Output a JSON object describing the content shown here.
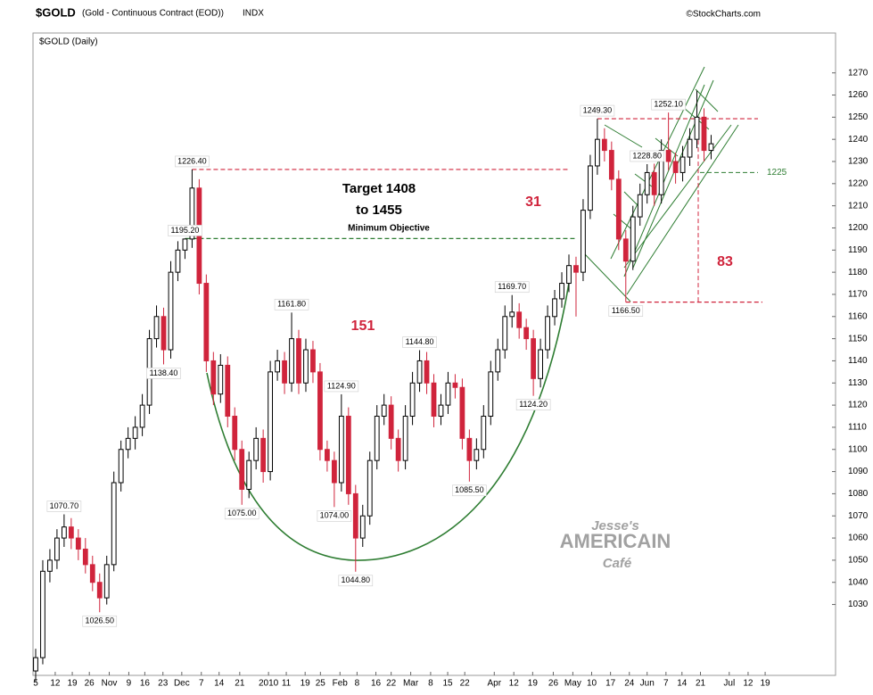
{
  "chart_data": {
    "type": "candlestick",
    "symbol": "$GOLD",
    "title": "(Gold - Continuous Contract (EOD))",
    "exchange": "INDX",
    "source": "©StockCharts.com",
    "panel_label": "$GOLD (Daily)",
    "xlim": [
      -0.5,
      225
    ],
    "xticks": [
      {
        "value": 0,
        "label": "5"
      },
      {
        "value": 5.5,
        "label": "12"
      },
      {
        "value": 10.3,
        "label": "19"
      },
      {
        "value": 15.1,
        "label": "26"
      },
      {
        "value": 20.7,
        "label": "Nov"
      },
      {
        "value": 26.2,
        "label": "9"
      },
      {
        "value": 30.7,
        "label": "16"
      },
      {
        "value": 35.8,
        "label": "23"
      },
      {
        "value": 41.1,
        "label": "Dec"
      },
      {
        "value": 46.6,
        "label": "7"
      },
      {
        "value": 51.6,
        "label": "14"
      },
      {
        "value": 57.4,
        "label": "21"
      },
      {
        "value": 65.5,
        "label": "2010"
      },
      {
        "value": 70.5,
        "label": "11"
      },
      {
        "value": 75.8,
        "label": "19"
      },
      {
        "value": 80.1,
        "label": "25"
      },
      {
        "value": 85.6,
        "label": "Feb"
      },
      {
        "value": 90.4,
        "label": "8"
      },
      {
        "value": 95.7,
        "label": "16"
      },
      {
        "value": 100,
        "label": "22"
      },
      {
        "value": 105.5,
        "label": "Mar"
      },
      {
        "value": 111.1,
        "label": "8"
      },
      {
        "value": 115.9,
        "label": "15"
      },
      {
        "value": 120.7,
        "label": "22"
      },
      {
        "value": 129,
        "label": "Apr"
      },
      {
        "value": 134.5,
        "label": "12"
      },
      {
        "value": 139.8,
        "label": "19"
      },
      {
        "value": 145.6,
        "label": "26"
      },
      {
        "value": 151.1,
        "label": "May"
      },
      {
        "value": 156.4,
        "label": "10"
      },
      {
        "value": 161.7,
        "label": "17"
      },
      {
        "value": 167,
        "label": "24"
      },
      {
        "value": 172,
        "label": "Jun"
      },
      {
        "value": 177.3,
        "label": "7"
      },
      {
        "value": 181.8,
        "label": "14"
      },
      {
        "value": 187,
        "label": "21"
      },
      {
        "value": 195.1,
        "label": "Jul"
      },
      {
        "value": 200.4,
        "label": "12"
      },
      {
        "value": 205.2,
        "label": "19"
      }
    ],
    "ylim": [
      998,
      1288
    ],
    "yticks": [
      1030,
      1040,
      1050,
      1060,
      1070,
      1080,
      1090,
      1100,
      1110,
      1120,
      1130,
      1140,
      1150,
      1160,
      1170,
      1180,
      1190,
      1200,
      1210,
      1220,
      1230,
      1240,
      1250,
      1260,
      1270
    ],
    "up_color": "#000000",
    "down_color": "#d0243c",
    "x": [
      0,
      2,
      4,
      6,
      8,
      10,
      12,
      14,
      16,
      18,
      20,
      22,
      24,
      26,
      28,
      30,
      32,
      34,
      36,
      38,
      40,
      42,
      44,
      46,
      48,
      50,
      52,
      54,
      56,
      58,
      60,
      62,
      64,
      66,
      68,
      70,
      72,
      74,
      76,
      78,
      80,
      82,
      84,
      86,
      88,
      90,
      92,
      94,
      96,
      98,
      100,
      102,
      104,
      106,
      108,
      110,
      112,
      114,
      116,
      118,
      120,
      122,
      124,
      126,
      128,
      130,
      132,
      134,
      136,
      138,
      140,
      142,
      144,
      146,
      148,
      150,
      152,
      154,
      156,
      158,
      160,
      162,
      164,
      166,
      168,
      170,
      172,
      174,
      176,
      178,
      180,
      182,
      184,
      186,
      188,
      190
    ],
    "open": [
      1000,
      1006,
      1045,
      1050,
      1060,
      1065,
      1060,
      1055,
      1048,
      1040,
      1033,
      1048,
      1085,
      1100,
      1105,
      1110,
      1120,
      1150,
      1160,
      1145,
      1180,
      1190,
      1195,
      1218,
      1175,
      1140,
      1125,
      1138,
      1115,
      1100,
      1082,
      1095,
      1105,
      1090,
      1135,
      1140,
      1130,
      1150,
      1130,
      1145,
      1135,
      1100,
      1095,
      1085,
      1115,
      1080,
      1060,
      1070,
      1095,
      1115,
      1120,
      1105,
      1095,
      1115,
      1130,
      1140,
      1130,
      1115,
      1120,
      1130,
      1128,
      1105,
      1095,
      1100,
      1115,
      1135,
      1145,
      1160,
      1162,
      1155,
      1150,
      1132,
      1145,
      1160,
      1168,
      1175,
      1183,
      1180,
      1208,
      1228,
      1240,
      1235,
      1222,
      1195,
      1185,
      1205,
      1215,
      1225,
      1215,
      1235,
      1230,
      1225,
      1232,
      1240,
      1250,
      1235
    ],
    "high": [
      1010,
      1050,
      1055,
      1064,
      1070.7,
      1069,
      1064,
      1060,
      1052,
      1044,
      1052,
      1090,
      1104,
      1110,
      1115,
      1125,
      1154,
      1165,
      1164,
      1185,
      1194,
      1195.2,
      1226.4,
      1222,
      1179,
      1144,
      1143,
      1142,
      1119,
      1104,
      1099,
      1110,
      1109,
      1140,
      1145,
      1144,
      1161.8,
      1154,
      1150,
      1149,
      1139,
      1104,
      1099,
      1124.9,
      1119,
      1084,
      1075,
      1099,
      1120,
      1125,
      1124,
      1109,
      1120,
      1135,
      1144.8,
      1144,
      1134,
      1125,
      1135,
      1134,
      1132,
      1109,
      1105,
      1120,
      1140,
      1150,
      1165,
      1169.7,
      1166,
      1159,
      1154,
      1150,
      1165,
      1172,
      1180,
      1188,
      1187,
      1213,
      1233,
      1249.3,
      1245,
      1239,
      1226,
      1199,
      1210,
      1220,
      1228.8,
      1229,
      1240,
      1252.1,
      1234,
      1237,
      1245,
      1262,
      1254,
      1242
    ],
    "low": [
      995,
      1003,
      1040,
      1046,
      1056,
      1055,
      1050,
      1044,
      1036,
      1026.5,
      1030,
      1045,
      1081,
      1096,
      1100,
      1106,
      1116,
      1146,
      1138.4,
      1141,
      1176,
      1186,
      1191,
      1170,
      1135,
      1120,
      1121,
      1110,
      1095,
      1075,
      1078,
      1091,
      1085,
      1086,
      1131,
      1125,
      1126,
      1125,
      1126,
      1130,
      1095,
      1090,
      1074,
      1081,
      1075,
      1044.8,
      1056,
      1066,
      1091,
      1111,
      1100,
      1090,
      1091,
      1111,
      1126,
      1125,
      1110,
      1111,
      1116,
      1123,
      1100,
      1085.5,
      1091,
      1096,
      1111,
      1131,
      1141,
      1155,
      1150,
      1145,
      1124.2,
      1128,
      1141,
      1156,
      1164,
      1171,
      1160,
      1176,
      1204,
      1224,
      1230,
      1217,
      1190,
      1166.5,
      1181,
      1201,
      1211,
      1210,
      1211,
      1226,
      1220,
      1221,
      1228,
      1236,
      1230,
      1231
    ],
    "close": [
      1006,
      1045,
      1050,
      1060,
      1065,
      1060,
      1055,
      1048,
      1040,
      1033,
      1048,
      1085,
      1100,
      1105,
      1110,
      1120,
      1150,
      1160,
      1145,
      1180,
      1190,
      1195,
      1218,
      1175,
      1140,
      1125,
      1138,
      1115,
      1100,
      1082,
      1095,
      1105,
      1090,
      1135,
      1140,
      1130,
      1150,
      1130,
      1145,
      1135,
      1100,
      1095,
      1085,
      1115,
      1080,
      1060,
      1070,
      1095,
      1115,
      1120,
      1105,
      1095,
      1115,
      1130,
      1140,
      1130,
      1115,
      1120,
      1130,
      1128,
      1105,
      1095,
      1100,
      1115,
      1135,
      1145,
      1160,
      1162,
      1155,
      1150,
      1132,
      1145,
      1160,
      1168,
      1175,
      1183,
      1180,
      1208,
      1228,
      1240,
      1235,
      1222,
      1195,
      1185,
      1205,
      1215,
      1225,
      1215,
      1235,
      1230,
      1225,
      1232,
      1240,
      1250,
      1235,
      1238
    ],
    "price_labels": [
      {
        "x": 44,
        "value": 1226.4,
        "label": "1226.40"
      },
      {
        "x": 42,
        "value": 1195.2,
        "label": "1195.20"
      },
      {
        "x": 36,
        "value": 1138.4,
        "label": "1138.40"
      },
      {
        "x": 8,
        "value": 1070.7,
        "label": "1070.70"
      },
      {
        "x": 18,
        "value": 1026.5,
        "label": "1026.50"
      },
      {
        "x": 72,
        "value": 1161.8,
        "label": "1161.80"
      },
      {
        "x": 58,
        "value": 1075,
        "label": "1075.00"
      },
      {
        "x": 86,
        "value": 1124.9,
        "label": "1124.90"
      },
      {
        "x": 84,
        "value": 1074,
        "label": "1074.00"
      },
      {
        "x": 90,
        "value": 1044.8,
        "label": "1044.80"
      },
      {
        "x": 108,
        "value": 1144.8,
        "label": "1144.80"
      },
      {
        "x": 122,
        "value": 1085.5,
        "label": "1085.50"
      },
      {
        "x": 134,
        "value": 1169.7,
        "label": "1169.70"
      },
      {
        "x": 140,
        "value": 1124.2,
        "label": "1124.20"
      },
      {
        "x": 158,
        "value": 1249.3,
        "label": "1249.30"
      },
      {
        "x": 172,
        "value": 1228.8,
        "label": "1228.80"
      },
      {
        "x": 178,
        "value": 1252.1,
        "label": "1252.10"
      },
      {
        "x": 166,
        "value": 1166.5,
        "label": "1166.50"
      }
    ],
    "level_label": 1225,
    "target_lines": [
      "Target 1408",
      "to 1455"
    ],
    "target_note": "Minimum Objective",
    "measured_moves": [
      31,
      151,
      83
    ],
    "watermark": [
      "Jesse's",
      "AMERICAIN",
      "Café"
    ]
  }
}
